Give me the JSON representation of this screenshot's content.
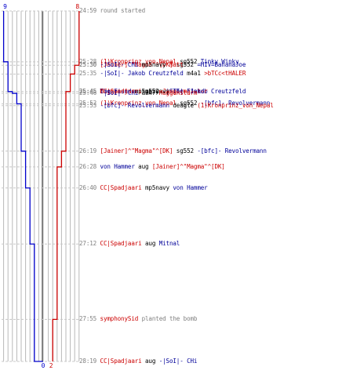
{
  "chart_data": {
    "type": "line",
    "title": "",
    "xlabel": "",
    "ylabel": "",
    "series": [
      {
        "color": "#0000cc",
        "start_score": "9",
        "end_score": "0",
        "alive": [
          {
            "time": "24:59",
            "value": 9
          },
          {
            "time": "25:28",
            "value": 8
          },
          {
            "time": "25:45",
            "value": 7
          },
          {
            "time": "25:46",
            "value": 6
          },
          {
            "time": "25:52",
            "value": 5
          },
          {
            "time": "26:19",
            "value": 4
          },
          {
            "time": "26:40",
            "value": 3
          },
          {
            "time": "27:12",
            "value": 2
          },
          {
            "time": "28:19",
            "value": 1
          },
          {
            "time": "28:19",
            "value": 0
          }
        ]
      },
      {
        "color": "#cc0000",
        "start_score": "8",
        "end_score": "2",
        "alive": [
          {
            "time": "24:59",
            "value": 8
          },
          {
            "time": "25:30",
            "value": 7
          },
          {
            "time": "25:35",
            "value": 6
          },
          {
            "time": "25:45",
            "value": 5
          },
          {
            "time": "26:19",
            "value": 4
          },
          {
            "time": "26:28",
            "value": 3
          },
          {
            "time": "27:55",
            "value": 2
          }
        ]
      }
    ]
  },
  "events": [
    {
      "time": "24:59",
      "parts": [
        {
          "text": "round started",
          "c": "msg"
        }
      ]
    },
    {
      "time": "25:28",
      "parts": [
        {
          "text": "(1)Kronprinz_von_Nepal",
          "c": "red"
        },
        {
          "text": " sg552 ",
          "c": "w"
        },
        {
          "text": "Tinky Winky",
          "c": "blue"
        }
      ]
    },
    {
      "time": "25:30",
      "parts": [
        {
          "text": "[Jainer]^\"Magma\"^[DK]",
          "c": "red"
        },
        {
          "text": " sg552 ",
          "c": "w"
        },
        {
          "text": "=HIV=BananaJoe",
          "c": "blue"
        }
      ]
    },
    {
      "time": "25:30",
      "parts": [
        {
          "text": "-|SoI|- CHi",
          "c": "blue"
        },
        {
          "text": " mp5navy ",
          "c": "w"
        },
        {
          "text": "Matt",
          "c": "red"
        }
      ]
    },
    {
      "time": "25:35",
      "parts": [
        {
          "text": "-|SoI|- Jakob Creutzfeld",
          "c": "blue"
        },
        {
          "text": " m4a1 ",
          "c": "w"
        },
        {
          "text": ">bTCc<tHALER",
          "c": "red"
        }
      ]
    },
    {
      "time": "25:45",
      "parts": [
        {
          "text": "Muggensturm",
          "c": "red"
        },
        {
          "text": " sg552 ",
          "c": "w"
        },
        {
          "text": "-|SoI|- Jakob Creutzfeld",
          "c": "blue"
        }
      ]
    },
    {
      "time": "25:45",
      "parts": [
        {
          "text": "The Fiend",
          "c": "blue"
        },
        {
          "text": " mp5navy ",
          "c": "w"
        },
        {
          "text": "Jaegermeister",
          "c": "red"
        }
      ]
    },
    {
      "time": "25:45",
      "parts": [
        {
          "text": "CC|Spadjaari",
          "c": "red"
        },
        {
          "text": " mp5navy ",
          "c": "w"
        },
        {
          "text": "The Fiend",
          "c": "blue"
        }
      ]
    },
    {
      "time": "25:46",
      "parts": [
        {
          "text": "-|SoI|- CHi",
          "c": "blue"
        },
        {
          "text": " ak47 ",
          "c": "w"
        },
        {
          "text": "Muggensturm",
          "c": "red"
        }
      ]
    },
    {
      "time": "25:52",
      "parts": [
        {
          "text": "(1)Kronprinz_von_Nepal",
          "c": "red"
        },
        {
          "text": " sg552 ",
          "c": "w"
        },
        {
          "text": "-[bfc]- Revolvermann",
          "c": "blue"
        }
      ]
    },
    {
      "time": "25:53",
      "parts": [
        {
          "text": "-[bfc]- Revolvermann",
          "c": "blue"
        },
        {
          "text": " deagle ",
          "c": "w"
        },
        {
          "text": "(1)Kronprinz_von_Nepal",
          "c": "red"
        }
      ]
    },
    {
      "time": "26:19",
      "parts": [
        {
          "text": "[Jainer]^\"Magma\"^[DK]",
          "c": "red"
        },
        {
          "text": " sg552 ",
          "c": "w"
        },
        {
          "text": "-[bfc]- Revolvermann",
          "c": "blue"
        }
      ]
    },
    {
      "time": "26:28",
      "parts": [
        {
          "text": "von Hammer",
          "c": "blue"
        },
        {
          "text": " aug ",
          "c": "w"
        },
        {
          "text": "[Jainer]^\"Magma\"^[DK]",
          "c": "red"
        }
      ]
    },
    {
      "time": "26:40",
      "parts": [
        {
          "text": "CC|Spadjaari",
          "c": "red"
        },
        {
          "text": " mp5navy ",
          "c": "w"
        },
        {
          "text": "von Hammer",
          "c": "blue"
        }
      ]
    },
    {
      "time": "27:12",
      "parts": [
        {
          "text": "CC|Spadjaari",
          "c": "red"
        },
        {
          "text": " aug ",
          "c": "w"
        },
        {
          "text": "Mitnal",
          "c": "blue"
        }
      ]
    },
    {
      "time": "27:55",
      "parts": [
        {
          "text": "symphonySid",
          "c": "red"
        },
        {
          "text": " planted the bomb",
          "c": "msg"
        }
      ]
    },
    {
      "time": "28:19",
      "parts": [
        {
          "text": "CC|Spadjaari",
          "c": "red"
        },
        {
          "text": " aug ",
          "c": "w"
        },
        {
          "text": "-|SoI|- CHi",
          "c": "blue"
        }
      ]
    }
  ]
}
